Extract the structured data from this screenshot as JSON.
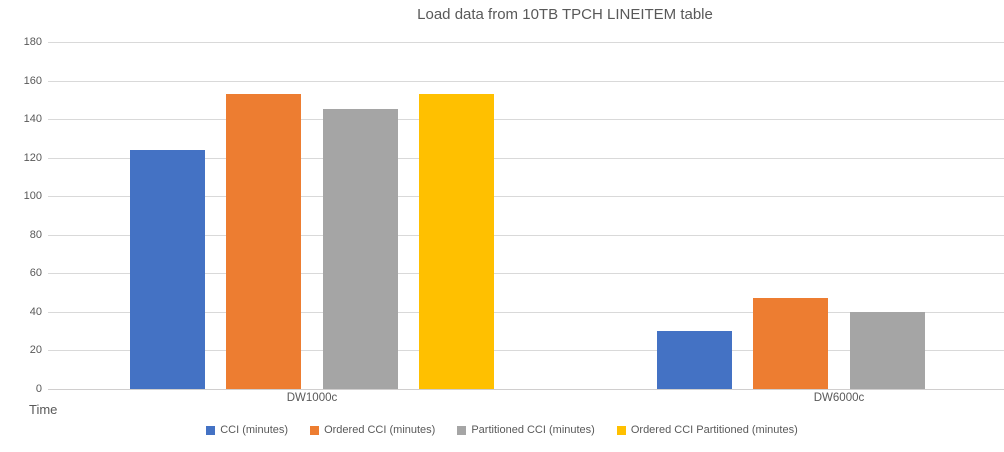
{
  "chart_data": {
    "type": "bar",
    "title": "Load data from 10TB TPCH LINEITEM table",
    "ylabel": "Time",
    "categories": [
      "DW1000c",
      "DW6000c"
    ],
    "series": [
      {
        "name": "CCI (minutes)",
        "color": "#4472C4",
        "values": [
          124,
          30
        ]
      },
      {
        "name": "Ordered CCI (minutes)",
        "color": "#ED7D31",
        "values": [
          153,
          47
        ]
      },
      {
        "name": "Partitioned CCI (minutes)",
        "color": "#A5A5A5",
        "values": [
          145,
          40
        ]
      },
      {
        "name": "Ordered CCI Partitioned (minutes)",
        "color": "#FFC000",
        "values": [
          153,
          null
        ]
      }
    ],
    "y_axis": {
      "min": 0,
      "max": 180,
      "step": 20
    },
    "grid": true,
    "legend_position": "bottom",
    "colors": {
      "grid": "#D9D9D9",
      "text": "#595959",
      "background": "#FFFFFF"
    }
  }
}
